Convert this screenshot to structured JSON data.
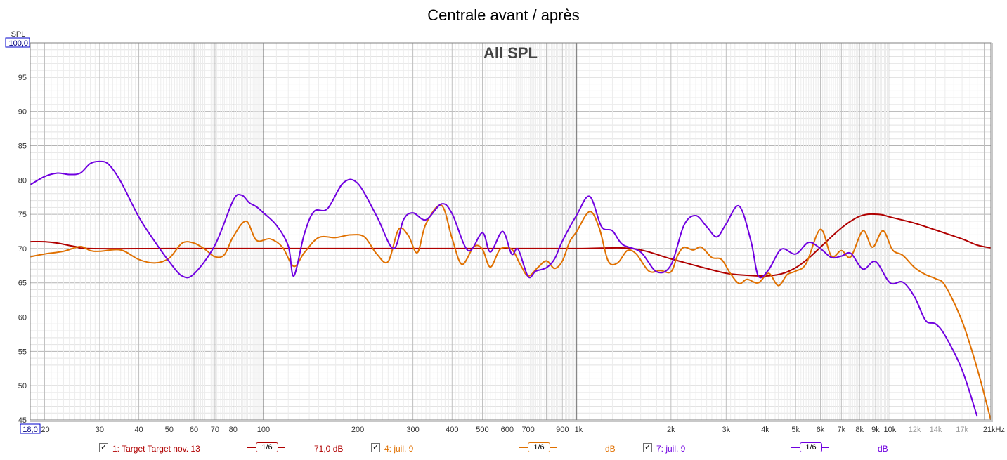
{
  "chart_data": {
    "type": "line",
    "title": "Centrale avant / après",
    "subtitle": "All SPL",
    "ylabel": "SPL",
    "xlim": [
      18,
      21000
    ],
    "ylim": [
      45,
      100
    ],
    "x_scale": "log",
    "grid": true,
    "y_ticks": [
      "100,0",
      "95",
      "90",
      "85",
      "80",
      "75",
      "70",
      "65",
      "60",
      "55",
      "50",
      "45"
    ],
    "x_ticks": [
      {
        "v": 18,
        "label": "18,0"
      },
      {
        "v": 20,
        "label": "20"
      },
      {
        "v": 30,
        "label": "30"
      },
      {
        "v": 40,
        "label": "40"
      },
      {
        "v": 50,
        "label": "50"
      },
      {
        "v": 60,
        "label": "60"
      },
      {
        "v": 70,
        "label": "70"
      },
      {
        "v": 80,
        "label": "80"
      },
      {
        "v": 100,
        "label": "100"
      },
      {
        "v": 200,
        "label": "200"
      },
      {
        "v": 300,
        "label": "300"
      },
      {
        "v": 400,
        "label": "400"
      },
      {
        "v": 500,
        "label": "500"
      },
      {
        "v": 600,
        "label": "600"
      },
      {
        "v": 700,
        "label": "700"
      },
      {
        "v": 900,
        "label": "900"
      },
      {
        "v": 1000,
        "label": "1k"
      },
      {
        "v": 2000,
        "label": "2k"
      },
      {
        "v": 3000,
        "label": "3k"
      },
      {
        "v": 4000,
        "label": "4k"
      },
      {
        "v": 5000,
        "label": "5k"
      },
      {
        "v": 6000,
        "label": "6k"
      },
      {
        "v": 7000,
        "label": "7k"
      },
      {
        "v": 8000,
        "label": "8k"
      },
      {
        "v": 9000,
        "label": "9k"
      },
      {
        "v": 10000,
        "label": "10k"
      },
      {
        "v": 12000,
        "label": "12k"
      },
      {
        "v": 14000,
        "label": "14k"
      },
      {
        "v": 17000,
        "label": "17k"
      },
      {
        "v": 21000,
        "label": "21kHz"
      }
    ],
    "series": [
      {
        "name": "1: Target Target nov. 13",
        "color": "#b00000",
        "smoothing": "1/6",
        "value_label": "71,0 dB",
        "points": [
          [
            18,
            71.0
          ],
          [
            20,
            71.0
          ],
          [
            22,
            70.8
          ],
          [
            25,
            70.3
          ],
          [
            28,
            70.0
          ],
          [
            50,
            70.0
          ],
          [
            100,
            70.0
          ],
          [
            200,
            70.0
          ],
          [
            500,
            70.0
          ],
          [
            1000,
            70.0
          ],
          [
            1500,
            70.0
          ],
          [
            2000,
            68.5
          ],
          [
            2500,
            67.3
          ],
          [
            3000,
            66.4
          ],
          [
            3500,
            66.1
          ],
          [
            4000,
            66.0
          ],
          [
            4500,
            66.3
          ],
          [
            5000,
            67.2
          ],
          [
            5500,
            68.6
          ],
          [
            6000,
            70.2
          ],
          [
            6500,
            71.7
          ],
          [
            7000,
            73.0
          ],
          [
            7500,
            74.0
          ],
          [
            8000,
            74.7
          ],
          [
            8500,
            75.0
          ],
          [
            9000,
            75.0
          ],
          [
            9500,
            74.9
          ],
          [
            10000,
            74.6
          ],
          [
            12000,
            73.7
          ],
          [
            14000,
            72.7
          ],
          [
            17000,
            71.4
          ],
          [
            19000,
            70.5
          ],
          [
            21000,
            70.1
          ]
        ]
      },
      {
        "name": "4: juil. 9",
        "color": "#e07000",
        "smoothing": "1/6",
        "value_label": "dB",
        "points": [
          [
            18,
            68.8
          ],
          [
            20,
            69.2
          ],
          [
            23,
            69.6
          ],
          [
            26,
            70.3
          ],
          [
            28,
            69.7
          ],
          [
            30,
            69.6
          ],
          [
            35,
            69.8
          ],
          [
            40,
            68.4
          ],
          [
            45,
            67.9
          ],
          [
            50,
            68.6
          ],
          [
            55,
            70.8
          ],
          [
            60,
            70.8
          ],
          [
            65,
            69.9
          ],
          [
            70,
            68.8
          ],
          [
            75,
            69.1
          ],
          [
            80,
            71.7
          ],
          [
            88,
            74.0
          ],
          [
            95,
            71.2
          ],
          [
            105,
            71.4
          ],
          [
            115,
            70.2
          ],
          [
            125,
            67.4
          ],
          [
            135,
            69.4
          ],
          [
            150,
            71.6
          ],
          [
            170,
            71.6
          ],
          [
            190,
            72.0
          ],
          [
            210,
            71.7
          ],
          [
            230,
            69.2
          ],
          [
            250,
            68.1
          ],
          [
            270,
            72.8
          ],
          [
            290,
            71.9
          ],
          [
            310,
            69.4
          ],
          [
            330,
            73.6
          ],
          [
            370,
            76.3
          ],
          [
            400,
            71.5
          ],
          [
            430,
            67.7
          ],
          [
            470,
            70.3
          ],
          [
            500,
            69.9
          ],
          [
            530,
            67.3
          ],
          [
            570,
            69.9
          ],
          [
            620,
            69.9
          ],
          [
            660,
            67.7
          ],
          [
            700,
            66.0
          ],
          [
            750,
            67.2
          ],
          [
            800,
            68.2
          ],
          [
            850,
            67.1
          ],
          [
            900,
            68.2
          ],
          [
            950,
            71.0
          ],
          [
            1000,
            72.5
          ],
          [
            1100,
            75.4
          ],
          [
            1180,
            73.0
          ],
          [
            1260,
            68.2
          ],
          [
            1350,
            67.9
          ],
          [
            1450,
            69.7
          ],
          [
            1550,
            69.2
          ],
          [
            1700,
            66.7
          ],
          [
            1850,
            66.8
          ],
          [
            2000,
            66.6
          ],
          [
            2100,
            69.0
          ],
          [
            2200,
            70.2
          ],
          [
            2350,
            69.8
          ],
          [
            2500,
            70.2
          ],
          [
            2700,
            68.7
          ],
          [
            2900,
            68.4
          ],
          [
            3100,
            66.3
          ],
          [
            3300,
            64.9
          ],
          [
            3500,
            65.5
          ],
          [
            3800,
            65.0
          ],
          [
            4100,
            66.4
          ],
          [
            4400,
            64.6
          ],
          [
            4700,
            66.2
          ],
          [
            5000,
            66.7
          ],
          [
            5400,
            67.8
          ],
          [
            6000,
            72.8
          ],
          [
            6500,
            68.9
          ],
          [
            7000,
            69.7
          ],
          [
            7500,
            68.8
          ],
          [
            8200,
            72.6
          ],
          [
            8800,
            70.2
          ],
          [
            9500,
            72.6
          ],
          [
            10200,
            69.8
          ],
          [
            11000,
            69.0
          ],
          [
            12000,
            67.2
          ],
          [
            13000,
            66.2
          ],
          [
            14000,
            65.6
          ],
          [
            15000,
            64.6
          ],
          [
            17000,
            59.4
          ],
          [
            19000,
            52.5
          ],
          [
            21000,
            45
          ]
        ]
      },
      {
        "name": "7: juil. 9",
        "color": "#7000e0",
        "smoothing": "1/6",
        "value_label": "dB",
        "points": [
          [
            18,
            79.3
          ],
          [
            20,
            80.5
          ],
          [
            22,
            81.0
          ],
          [
            24,
            80.8
          ],
          [
            26,
            81.0
          ],
          [
            28,
            82.4
          ],
          [
            30,
            82.7
          ],
          [
            32,
            82.3
          ],
          [
            35,
            79.8
          ],
          [
            40,
            74.6
          ],
          [
            45,
            71.0
          ],
          [
            50,
            68.1
          ],
          [
            55,
            66.0
          ],
          [
            60,
            66.3
          ],
          [
            70,
            70.5
          ],
          [
            80,
            77.0
          ],
          [
            85,
            77.8
          ],
          [
            90,
            76.7
          ],
          [
            95,
            76.1
          ],
          [
            100,
            75.2
          ],
          [
            110,
            73.4
          ],
          [
            120,
            70.4
          ],
          [
            125,
            66.0
          ],
          [
            135,
            72.1
          ],
          [
            145,
            75.4
          ],
          [
            160,
            75.8
          ],
          [
            180,
            79.6
          ],
          [
            200,
            79.5
          ],
          [
            230,
            74.7
          ],
          [
            260,
            70.0
          ],
          [
            280,
            74.2
          ],
          [
            300,
            75.2
          ],
          [
            330,
            74.2
          ],
          [
            370,
            76.5
          ],
          [
            400,
            75.1
          ],
          [
            450,
            69.7
          ],
          [
            500,
            72.3
          ],
          [
            530,
            69.5
          ],
          [
            580,
            72.5
          ],
          [
            620,
            69.2
          ],
          [
            650,
            69.9
          ],
          [
            700,
            65.9
          ],
          [
            740,
            66.7
          ],
          [
            800,
            67.2
          ],
          [
            850,
            68.5
          ],
          [
            900,
            71.1
          ],
          [
            1000,
            74.9
          ],
          [
            1100,
            77.6
          ],
          [
            1200,
            73.2
          ],
          [
            1300,
            72.6
          ],
          [
            1400,
            70.6
          ],
          [
            1600,
            69.5
          ],
          [
            1800,
            66.6
          ],
          [
            2000,
            67.6
          ],
          [
            2200,
            73.4
          ],
          [
            2400,
            74.8
          ],
          [
            2600,
            73.2
          ],
          [
            2800,
            71.7
          ],
          [
            3000,
            73.6
          ],
          [
            3300,
            76.2
          ],
          [
            3600,
            71.1
          ],
          [
            3800,
            66.0
          ],
          [
            4100,
            66.9
          ],
          [
            4500,
            69.9
          ],
          [
            5000,
            69.2
          ],
          [
            5500,
            70.9
          ],
          [
            6000,
            70.0
          ],
          [
            6500,
            68.7
          ],
          [
            7000,
            68.9
          ],
          [
            7500,
            69.3
          ],
          [
            8200,
            67.0
          ],
          [
            9000,
            68.1
          ],
          [
            10000,
            65.0
          ],
          [
            11000,
            65.1
          ],
          [
            12000,
            62.9
          ],
          [
            13000,
            59.5
          ],
          [
            14000,
            59.0
          ],
          [
            15000,
            57.3
          ],
          [
            17000,
            52.3
          ],
          [
            19000,
            45.5
          ]
        ]
      }
    ]
  }
}
